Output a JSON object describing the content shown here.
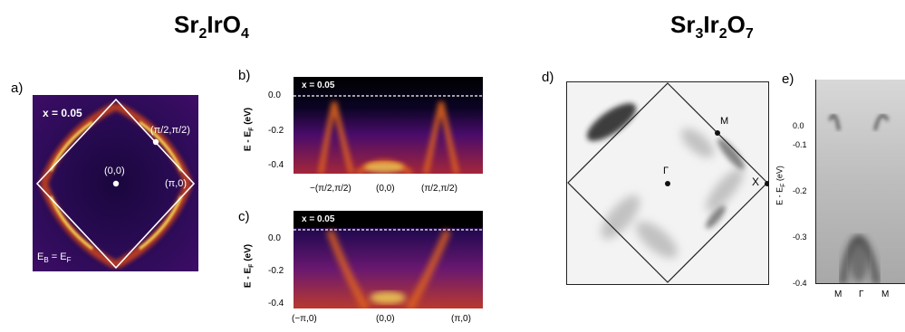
{
  "titles": {
    "left": {
      "a": "Sr",
      "a_sub": "2",
      "b": "IrO",
      "b_sub": "4"
    },
    "right": {
      "a": "Sr",
      "a_sub": "3",
      "b": "Ir",
      "b_sub": "2",
      "c": "O",
      "c_sub": "7"
    }
  },
  "panels": {
    "a": {
      "label": "a)",
      "doping": "x = 0.05",
      "energy": "E",
      "energy_sub_b": "B",
      "energy_eq": " = E",
      "energy_sub_f": "F",
      "points": {
        "gamma": "(0,0)",
        "m": "(π/2,π/2)",
        "x": "(π,0)"
      }
    },
    "b": {
      "label": "b)",
      "doping": "x = 0.05",
      "ylabel": "E - E",
      "ylabel_sub": "F",
      "ylabel_unit": " (eV)",
      "yticks": [
        "0.0",
        "-0.2",
        "-0.4"
      ],
      "xticks": [
        "−(π/2,π/2)",
        "(0,0)",
        "(π/2,π/2)"
      ]
    },
    "c": {
      "label": "c)",
      "doping": "x = 0.05",
      "ylabel": "E - E",
      "ylabel_sub": "F",
      "ylabel_unit": " (eV)",
      "yticks": [
        "0.0",
        "-0.2",
        "-0.4"
      ],
      "xticks": [
        "(−π,0)",
        "(0,0)",
        "(π,0)"
      ]
    },
    "d": {
      "label": "d)",
      "points": {
        "gamma": "Γ",
        "m": "M",
        "x": "X"
      }
    },
    "e": {
      "label": "e)",
      "ylabel": "E - E",
      "ylabel_sub": "F",
      "ylabel_unit": " (eV)",
      "yticks": [
        "0.0",
        "-0.1",
        "-0.2",
        "-0.3",
        "-0.4"
      ],
      "xticks": [
        "M",
        "Γ",
        "M"
      ]
    }
  },
  "colors": {
    "inferno_dark": "#0b0424",
    "inferno_purple": "#4a0c6b",
    "inferno_orange": "#e3661c",
    "inferno_yellow": "#fbe35a",
    "grey_map": "#f3f3f3",
    "grey_dark": "#2a2a2a"
  }
}
